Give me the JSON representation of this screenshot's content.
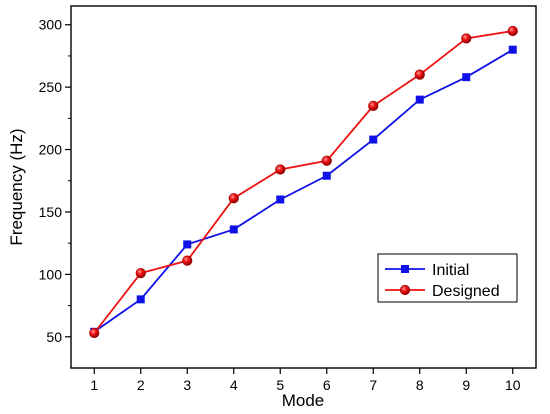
{
  "chart_data": {
    "type": "line",
    "xlabel": "Mode",
    "ylabel": "Frequency (Hz)",
    "xlim": [
      0.5,
      10.5
    ],
    "ylim": [
      25,
      315
    ],
    "x_ticks": [
      1,
      2,
      3,
      4,
      5,
      6,
      7,
      8,
      9,
      10
    ],
    "y_ticks": [
      50,
      100,
      150,
      200,
      250,
      300
    ],
    "grid": false,
    "legend_position": "bottom-right",
    "series": [
      {
        "name": "Initial",
        "marker": "square",
        "color": "#1010e8",
        "x": [
          1,
          2,
          3,
          4,
          5,
          6,
          7,
          8,
          9,
          10
        ],
        "y": [
          54,
          80,
          124,
          136,
          160,
          179,
          208,
          240,
          258,
          280
        ]
      },
      {
        "name": "Designed",
        "marker": "circle",
        "color": "#ee1111",
        "x": [
          1,
          2,
          3,
          4,
          5,
          6,
          7,
          8,
          9,
          10
        ],
        "y": [
          53,
          101,
          111,
          161,
          184,
          191,
          235,
          260,
          289,
          295
        ]
      }
    ]
  }
}
